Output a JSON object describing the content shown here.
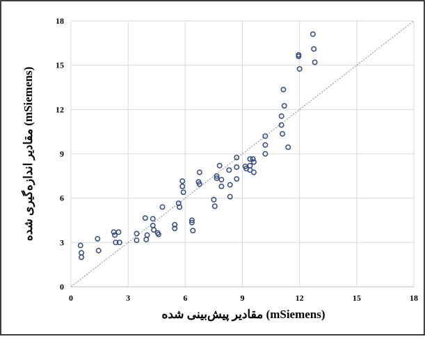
{
  "chart_data": {
    "type": "scatter",
    "x_label": "مقادیر پیش‌بینی شده (mSiemens)",
    "y_label": "مقادیر اندازه‌گیری شده (mSiemens)",
    "xlim": [
      0,
      18
    ],
    "ylim": [
      0,
      18
    ],
    "xticks": [
      0,
      3,
      6,
      9,
      12,
      15,
      18
    ],
    "yticks": [
      0,
      3,
      6,
      9,
      12,
      15,
      18
    ],
    "grid": true,
    "reference_line": "y=x",
    "series": [
      {
        "color": "#2f4a7a",
        "x": [
          0.5,
          0.55,
          0.55,
          1.4,
          1.45,
          2.25,
          2.3,
          2.35,
          2.55,
          2.5,
          3.45,
          3.45,
          3.9,
          4.0,
          3.95,
          4.3,
          4.3,
          4.35,
          4.55,
          4.6,
          4.8,
          5.45,
          5.45,
          5.65,
          5.7,
          5.85,
          5.85,
          5.9,
          6.35,
          6.35,
          6.4,
          6.75,
          6.7,
          6.75,
          7.5,
          7.55,
          7.65,
          7.65,
          7.8,
          7.9,
          7.9,
          8.3,
          8.35,
          8.35,
          8.7,
          8.7,
          8.7,
          9.15,
          9.2,
          9.4,
          9.4,
          9.4,
          9.55,
          9.6,
          9.6,
          10.2,
          10.2,
          10.2,
          11.05,
          11.05,
          11.1,
          11.15,
          11.2,
          11.4,
          11.95,
          11.95,
          12.0,
          12.7,
          12.75,
          12.8
        ],
        "values": [
          2.8,
          2.3,
          2.0,
          3.25,
          2.45,
          3.7,
          3.5,
          3.0,
          3.0,
          3.7,
          3.6,
          3.15,
          4.65,
          3.5,
          3.2,
          4.6,
          4.15,
          3.85,
          3.65,
          3.55,
          5.4,
          4.2,
          3.95,
          5.65,
          5.4,
          7.15,
          6.8,
          6.4,
          4.5,
          4.35,
          3.8,
          7.75,
          7.1,
          6.95,
          5.9,
          5.45,
          7.5,
          7.35,
          8.2,
          7.25,
          6.8,
          7.9,
          6.9,
          6.1,
          8.75,
          8.1,
          7.3,
          8.15,
          8.0,
          7.9,
          8.2,
          8.65,
          8.65,
          8.45,
          7.75,
          10.2,
          9.6,
          9.0,
          11.55,
          10.95,
          10.35,
          13.35,
          12.25,
          9.45,
          15.7,
          15.6,
          14.75,
          17.1,
          16.1,
          15.2
        ]
      }
    ]
  }
}
